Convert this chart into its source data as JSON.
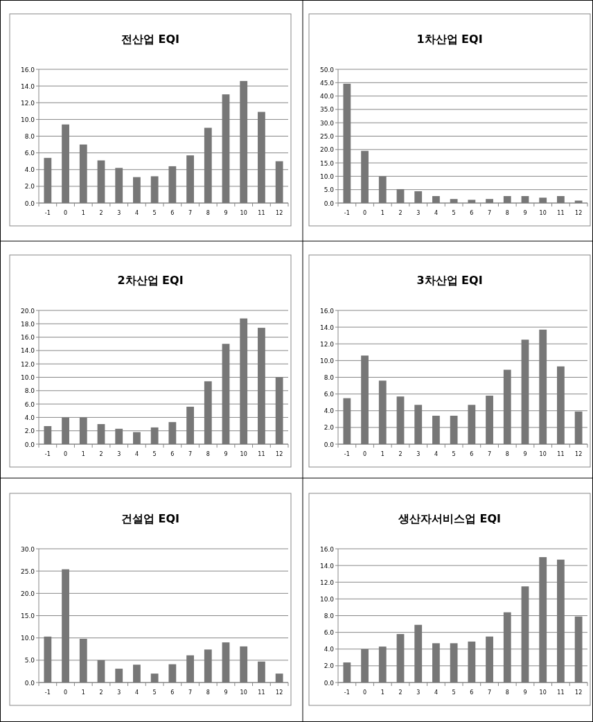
{
  "chart_data": [
    {
      "type": "bar",
      "title": "전산업 EQI",
      "categories": [
        "-1",
        "0",
        "1",
        "2",
        "3",
        "4",
        "5",
        "6",
        "7",
        "8",
        "9",
        "10",
        "11",
        "12"
      ],
      "values": [
        5.4,
        9.4,
        7.0,
        5.1,
        4.2,
        3.1,
        3.2,
        4.4,
        5.7,
        9.0,
        13.0,
        14.6,
        10.9,
        5.0
      ],
      "color": "#777777",
      "ylim": [
        0,
        16
      ],
      "yticks": [
        {
          "value": 0,
          "label": "0.0"
        },
        {
          "value": 2,
          "label": "2.0"
        },
        {
          "value": 4,
          "label": "4.0"
        },
        {
          "value": 6,
          "label": "6.0"
        },
        {
          "value": 8,
          "label": "8.0"
        },
        {
          "value": 10,
          "label": "10.0"
        },
        {
          "value": 12,
          "label": "12.0"
        },
        {
          "value": 14,
          "label": "14.0"
        },
        {
          "value": 16,
          "label": "16.0"
        }
      ],
      "grid": "y",
      "legend": false
    },
    {
      "type": "bar",
      "title": "1차산업 EQI",
      "categories": [
        "-1",
        "0",
        "1",
        "2",
        "3",
        "4",
        "5",
        "6",
        "7",
        "8",
        "9",
        "10",
        "11",
        "12"
      ],
      "values": [
        44.6,
        19.5,
        10.0,
        5.2,
        4.4,
        2.6,
        1.5,
        1.2,
        1.5,
        2.6,
        2.6,
        2.0,
        2.6,
        0.9
      ],
      "color": "#777777",
      "ylim": [
        0,
        50
      ],
      "yticks": [
        {
          "value": 0,
          "label": "0.0"
        },
        {
          "value": 5,
          "label": "5.0"
        },
        {
          "value": 10,
          "label": "10.0"
        },
        {
          "value": 15,
          "label": "15.0"
        },
        {
          "value": 20,
          "label": "20.0"
        },
        {
          "value": 25,
          "label": "25.0"
        },
        {
          "value": 30,
          "label": "30.0"
        },
        {
          "value": 35,
          "label": "35.0"
        },
        {
          "value": 40,
          "label": "40.0"
        },
        {
          "value": 45,
          "label": "45.0"
        },
        {
          "value": 50,
          "label": "50.0"
        }
      ],
      "grid": "y",
      "legend": false
    },
    {
      "type": "bar",
      "title": "2차산업 EQI",
      "categories": [
        "-1",
        "0",
        "1",
        "2",
        "3",
        "4",
        "5",
        "6",
        "7",
        "8",
        "9",
        "10",
        "11",
        "12"
      ],
      "values": [
        2.7,
        4.0,
        4.0,
        3.0,
        2.3,
        1.8,
        2.5,
        3.3,
        5.6,
        9.4,
        15.0,
        18.8,
        17.4,
        10.0
      ],
      "color": "#777777",
      "ylim": [
        0,
        20
      ],
      "yticks": [
        {
          "value": 0,
          "label": "0.0"
        },
        {
          "value": 2,
          "label": "2.0"
        },
        {
          "value": 4,
          "label": "4.0"
        },
        {
          "value": 6,
          "label": "6.0"
        },
        {
          "value": 8,
          "label": "8.0"
        },
        {
          "value": 10,
          "label": "10.0"
        },
        {
          "value": 12,
          "label": "12.0"
        },
        {
          "value": 14,
          "label": "14.0"
        },
        {
          "value": 16,
          "label": "16.0"
        },
        {
          "value": 18,
          "label": "18.0"
        },
        {
          "value": 20,
          "label": "20.0"
        }
      ],
      "grid": "y",
      "legend": false
    },
    {
      "type": "bar",
      "title": "3차산업 EQI",
      "categories": [
        "-1",
        "0",
        "1",
        "2",
        "3",
        "4",
        "5",
        "6",
        "7",
        "8",
        "9",
        "10",
        "11",
        "12"
      ],
      "values": [
        5.5,
        10.6,
        7.6,
        5.7,
        4.7,
        3.4,
        3.4,
        4.7,
        5.8,
        8.9,
        12.5,
        13.7,
        9.3,
        3.9
      ],
      "color": "#777777",
      "ylim": [
        0,
        16
      ],
      "yticks": [
        {
          "value": 0,
          "label": "0.0"
        },
        {
          "value": 2,
          "label": "2.0"
        },
        {
          "value": 4,
          "label": "4.0"
        },
        {
          "value": 6,
          "label": "6.0"
        },
        {
          "value": 8,
          "label": "8.0"
        },
        {
          "value": 10,
          "label": "10.0"
        },
        {
          "value": 12,
          "label": "12.0"
        },
        {
          "value": 14,
          "label": "14.0"
        },
        {
          "value": 16,
          "label": "16.0"
        }
      ],
      "grid": "y",
      "legend": false
    },
    {
      "type": "bar",
      "title": "건설업 EQI",
      "categories": [
        "-1",
        "0",
        "1",
        "2",
        "3",
        "4",
        "5",
        "6",
        "7",
        "8",
        "9",
        "10",
        "11",
        "12"
      ],
      "values": [
        10.3,
        25.4,
        9.8,
        5.0,
        3.1,
        4.0,
        2.0,
        4.1,
        6.1,
        7.4,
        9.0,
        8.1,
        4.7,
        2.0
      ],
      "color": "#777777",
      "ylim": [
        0,
        30
      ],
      "yticks": [
        {
          "value": 0,
          "label": "0.0"
        },
        {
          "value": 5,
          "label": "5.0"
        },
        {
          "value": 10,
          "label": "10.0"
        },
        {
          "value": 15,
          "label": "15.0"
        },
        {
          "value": 20,
          "label": "20.0"
        },
        {
          "value": 25,
          "label": "25.0"
        },
        {
          "value": 30,
          "label": "30.0"
        }
      ],
      "grid": "y",
      "legend": false
    },
    {
      "type": "bar",
      "title": "생산자서비스업 EQI",
      "categories": [
        "-1",
        "0",
        "1",
        "2",
        "3",
        "4",
        "5",
        "6",
        "7",
        "8",
        "9",
        "10",
        "11",
        "12"
      ],
      "values": [
        2.4,
        4.0,
        4.3,
        5.8,
        6.9,
        4.7,
        4.7,
        4.9,
        5.5,
        8.4,
        11.5,
        15.0,
        14.7,
        7.9
      ],
      "color": "#777777",
      "ylim": [
        0,
        16
      ],
      "yticks": [
        {
          "value": 0,
          "label": "0.0"
        },
        {
          "value": 2,
          "label": "2.0"
        },
        {
          "value": 4,
          "label": "4.0"
        },
        {
          "value": 6,
          "label": "6.0"
        },
        {
          "value": 8,
          "label": "8.0"
        },
        {
          "value": 10,
          "label": "10.0"
        },
        {
          "value": 12,
          "label": "12.0"
        },
        {
          "value": 14,
          "label": "14.0"
        },
        {
          "value": 16,
          "label": "16.0"
        }
      ],
      "grid": "y",
      "legend": false
    }
  ]
}
